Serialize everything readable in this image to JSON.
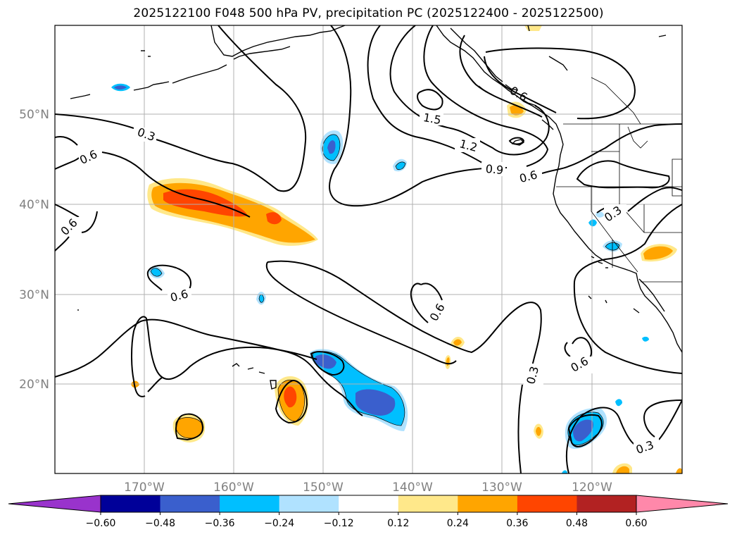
{
  "title": "2025122100 F048 500 hPa PV, precipitation PC (2025122400 - 2025122500)",
  "map": {
    "lon_ticks": [
      "170°W",
      "160°W",
      "150°W",
      "140°W",
      "130°W",
      "120°W"
    ],
    "lat_ticks": [
      "50°N",
      "40°N",
      "30°N",
      "20°N"
    ],
    "contour_labels": [
      {
        "text": "0.3",
        "name": "pv-label-0.3-nw"
      },
      {
        "text": "0.6",
        "name": "pv-label-0.6-w"
      },
      {
        "text": "0.6",
        "name": "pv-label-0.6-sw"
      },
      {
        "text": "0.6",
        "name": "pv-label-0.6-mid"
      },
      {
        "text": "1.5",
        "name": "pv-label-1.5"
      },
      {
        "text": "1.2",
        "name": "pv-label-1.2"
      },
      {
        "text": "0.9",
        "name": "pv-label-0.9"
      },
      {
        "text": "0.6",
        "name": "pv-label-0.6-ne"
      },
      {
        "text": "0.3",
        "name": "pv-label-0.3-coast"
      },
      {
        "text": "0.6",
        "name": "pv-label-0.6-center"
      },
      {
        "text": "0.3",
        "name": "pv-label-0.3-south"
      },
      {
        "text": "0.6",
        "name": "pv-label-0.6-se"
      },
      {
        "text": "0.3",
        "name": "pv-label-0.3-se"
      },
      {
        "text": "0.6",
        "name": "pv-label-0.6-far-w"
      }
    ]
  },
  "colorbar": {
    "ticks": [
      "−0.60",
      "−0.48",
      "−0.36",
      "−0.24",
      "−0.12",
      "0.12",
      "0.24",
      "0.36",
      "0.48",
      "0.60"
    ],
    "colors": [
      "#9933cc",
      "#000099",
      "#3a5fcd",
      "#00bfff",
      "#b0e2ff",
      "#ffffff",
      "#ffe88a",
      "#ffa500",
      "#ff4500",
      "#b22222",
      "#ff88aa"
    ]
  }
}
